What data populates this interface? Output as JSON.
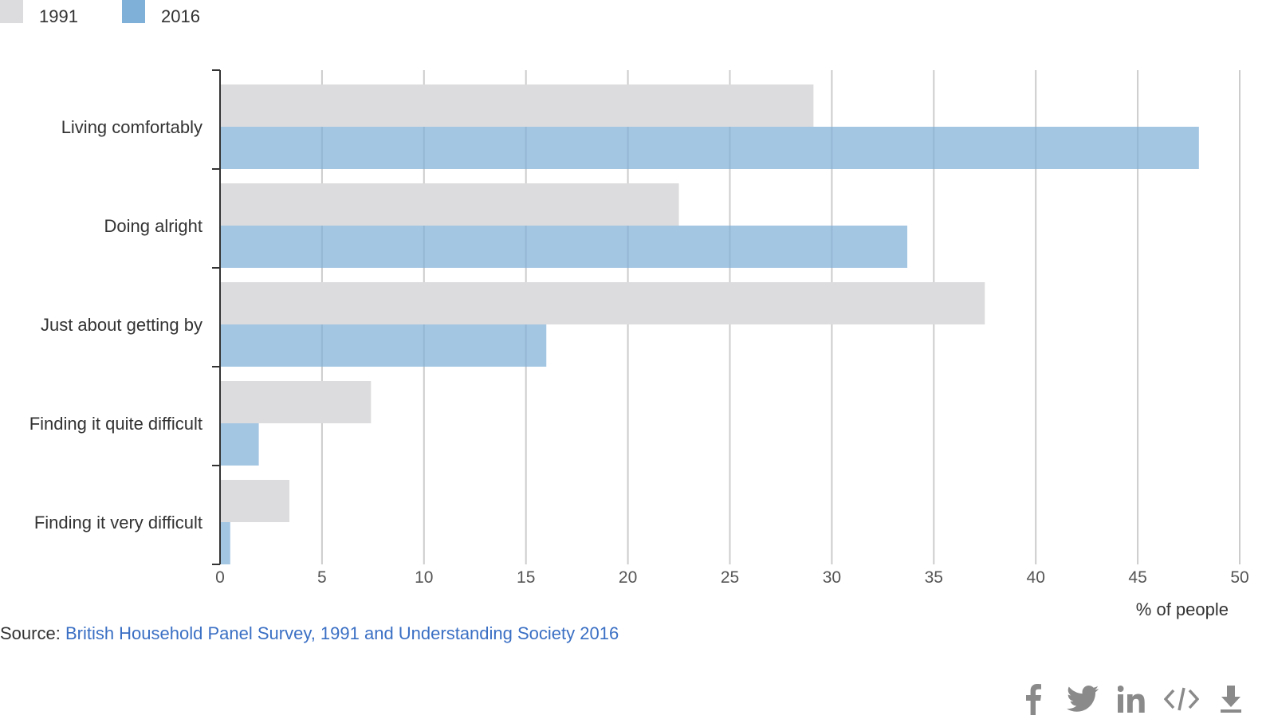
{
  "legend": [
    {
      "label": "1991",
      "color": "#dcdcde"
    },
    {
      "label": "2016",
      "color": "#7fb0d8"
    }
  ],
  "chart_data": {
    "type": "bar",
    "orientation": "horizontal",
    "categories": [
      "Living comfortably",
      "Doing alright",
      "Just about getting by",
      "Finding it quite difficult",
      "Finding it very difficult"
    ],
    "series": [
      {
        "name": "1991",
        "values": [
          29.1,
          22.5,
          37.5,
          7.4,
          3.4
        ],
        "color": "#dcdcde"
      },
      {
        "name": "2016",
        "values": [
          48.0,
          33.7,
          16.0,
          1.9,
          0.5
        ],
        "color": "#7fb0d8"
      }
    ],
    "xlim": [
      0,
      50
    ],
    "xticks": [
      0,
      5,
      10,
      15,
      20,
      25,
      30,
      35,
      40,
      45,
      50
    ],
    "xlabel": "% of people",
    "grid": true,
    "legend_position": "top-left"
  },
  "source": {
    "prefix": "Source: ",
    "link_text": "British Household Panel Survey, 1991 and Understanding Society 2016"
  },
  "share_icons": [
    "facebook-icon",
    "twitter-icon",
    "linkedin-icon",
    "embed-code-icon",
    "download-icon"
  ]
}
